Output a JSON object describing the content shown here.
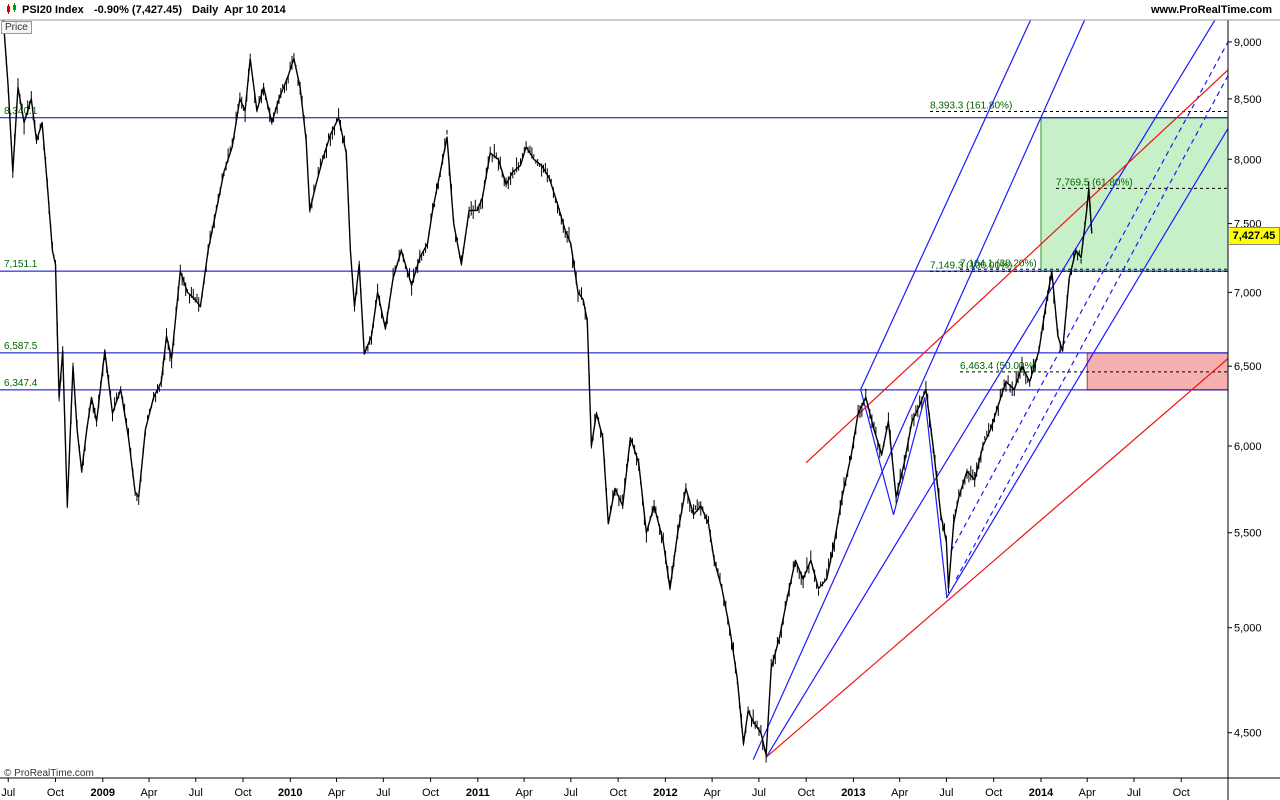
{
  "header": {
    "symbol": "PSI20 Index",
    "change": "-0.90% (7,427.45)",
    "period": "Daily",
    "date": "Apr 10 2014",
    "site": "www.ProRealTime.com"
  },
  "price_label": "Price",
  "copyright": "© ProRealTime.com",
  "colors": {
    "price": "#000000",
    "level_line": "#0000cc",
    "level_label": "#006600",
    "channel_blue": "#1a1aff",
    "channel_red": "#ee1111",
    "target_zone": "#c8f0c8",
    "target_border": "#2a9a2a",
    "support_zone": "#f6b0b0",
    "support_border": "#cc3333",
    "current_price_bg": "#ffff00"
  },
  "chart_data": {
    "type": "line",
    "title": "",
    "xlabel": "",
    "ylabel": "",
    "scale": "log",
    "ylim": [
      4300,
      9200
    ],
    "xlim": [
      "2008-06-15",
      "2014-12-31"
    ],
    "grid": false,
    "y_ticks": [
      4500,
      5000,
      5500,
      6000,
      6500,
      7000,
      7500,
      8000,
      8500,
      9000
    ],
    "y_tick_labels": [
      "4,500",
      "5,000",
      "5,500",
      "6,000",
      "6,500",
      "7,000",
      "7,500",
      "8,000",
      "8,500",
      "9,000"
    ],
    "x_ticks": [
      {
        "label": "Jul",
        "date": "2008-07-01",
        "bold": false
      },
      {
        "label": "Oct",
        "date": "2008-10-01",
        "bold": false
      },
      {
        "label": "2009",
        "date": "2009-01-01",
        "bold": true
      },
      {
        "label": "Apr",
        "date": "2009-04-01",
        "bold": false
      },
      {
        "label": "Jul",
        "date": "2009-07-01",
        "bold": false
      },
      {
        "label": "Oct",
        "date": "2009-10-01",
        "bold": false
      },
      {
        "label": "2010",
        "date": "2010-01-01",
        "bold": true
      },
      {
        "label": "Apr",
        "date": "2010-04-01",
        "bold": false
      },
      {
        "label": "Jul",
        "date": "2010-07-01",
        "bold": false
      },
      {
        "label": "Oct",
        "date": "2010-10-01",
        "bold": false
      },
      {
        "label": "2011",
        "date": "2011-01-01",
        "bold": true
      },
      {
        "label": "Apr",
        "date": "2011-04-01",
        "bold": false
      },
      {
        "label": "Jul",
        "date": "2011-07-01",
        "bold": false
      },
      {
        "label": "Oct",
        "date": "2011-10-01",
        "bold": false
      },
      {
        "label": "2012",
        "date": "2012-01-01",
        "bold": true
      },
      {
        "label": "Apr",
        "date": "2012-04-01",
        "bold": false
      },
      {
        "label": "Jul",
        "date": "2012-07-01",
        "bold": false
      },
      {
        "label": "Oct",
        "date": "2012-10-01",
        "bold": false
      },
      {
        "label": "2013",
        "date": "2013-01-01",
        "bold": true
      },
      {
        "label": "Apr",
        "date": "2013-04-01",
        "bold": false
      },
      {
        "label": "Jul",
        "date": "2013-07-01",
        "bold": false
      },
      {
        "label": "Oct",
        "date": "2013-10-01",
        "bold": false
      },
      {
        "label": "2014",
        "date": "2014-01-01",
        "bold": true
      },
      {
        "label": "Apr",
        "date": "2014-04-01",
        "bold": false
      },
      {
        "label": "Jul",
        "date": "2014-07-01",
        "bold": false
      },
      {
        "label": "Oct",
        "date": "2014-10-01",
        "bold": false
      }
    ],
    "series": [
      {
        "values": [
          [
            "2008-06-20",
            9300
          ],
          [
            "2008-07-01",
            8600
          ],
          [
            "2008-07-10",
            7900
          ],
          [
            "2008-07-20",
            8600
          ],
          [
            "2008-08-01",
            8300
          ],
          [
            "2008-08-15",
            8500
          ],
          [
            "2008-08-25",
            8150
          ],
          [
            "2008-09-05",
            8300
          ],
          [
            "2008-09-15",
            7800
          ],
          [
            "2008-09-25",
            7300
          ],
          [
            "2008-10-01",
            7200
          ],
          [
            "2008-10-08",
            6300
          ],
          [
            "2008-10-15",
            6600
          ],
          [
            "2008-10-24",
            5650
          ],
          [
            "2008-11-04",
            6500
          ],
          [
            "2008-11-12",
            6100
          ],
          [
            "2008-11-21",
            5850
          ],
          [
            "2008-12-01",
            6100
          ],
          [
            "2008-12-10",
            6300
          ],
          [
            "2008-12-20",
            6150
          ],
          [
            "2009-01-05",
            6600
          ],
          [
            "2009-01-20",
            6200
          ],
          [
            "2009-02-05",
            6350
          ],
          [
            "2009-02-20",
            6050
          ],
          [
            "2009-03-05",
            5730
          ],
          [
            "2009-03-12",
            5700
          ],
          [
            "2009-03-25",
            6100
          ],
          [
            "2009-04-10",
            6300
          ],
          [
            "2009-04-25",
            6400
          ],
          [
            "2009-05-05",
            6700
          ],
          [
            "2009-05-15",
            6550
          ],
          [
            "2009-06-01",
            7150
          ],
          [
            "2009-06-15",
            7000
          ],
          [
            "2009-06-30",
            6950
          ],
          [
            "2009-07-10",
            6900
          ],
          [
            "2009-07-25",
            7300
          ],
          [
            "2009-08-10",
            7600
          ],
          [
            "2009-08-25",
            7900
          ],
          [
            "2009-09-10",
            8100
          ],
          [
            "2009-09-25",
            8500
          ],
          [
            "2009-10-05",
            8400
          ],
          [
            "2009-10-15",
            8850
          ],
          [
            "2009-10-28",
            8400
          ],
          [
            "2009-11-10",
            8600
          ],
          [
            "2009-11-26",
            8300
          ],
          [
            "2009-12-10",
            8500
          ],
          [
            "2009-12-28",
            8700
          ],
          [
            "2010-01-08",
            8850
          ],
          [
            "2010-01-20",
            8600
          ],
          [
            "2010-02-01",
            8150
          ],
          [
            "2010-02-08",
            7600
          ],
          [
            "2010-02-20",
            7800
          ],
          [
            "2010-03-05",
            8000
          ],
          [
            "2010-03-20",
            8200
          ],
          [
            "2010-04-05",
            8340
          ],
          [
            "2010-04-20",
            8050
          ],
          [
            "2010-04-28",
            7300
          ],
          [
            "2010-05-06",
            6900
          ],
          [
            "2010-05-15",
            7200
          ],
          [
            "2010-05-25",
            6580
          ],
          [
            "2010-06-08",
            6700
          ],
          [
            "2010-06-20",
            7000
          ],
          [
            "2010-07-05",
            6750
          ],
          [
            "2010-07-20",
            7100
          ],
          [
            "2010-08-05",
            7300
          ],
          [
            "2010-08-25",
            7050
          ],
          [
            "2010-09-10",
            7250
          ],
          [
            "2010-09-25",
            7350
          ],
          [
            "2010-10-05",
            7600
          ],
          [
            "2010-10-20",
            7900
          ],
          [
            "2010-11-02",
            8180
          ],
          [
            "2010-11-15",
            7500
          ],
          [
            "2010-11-30",
            7200
          ],
          [
            "2010-12-15",
            7600
          ],
          [
            "2010-12-31",
            7600
          ],
          [
            "2011-01-10",
            7700
          ],
          [
            "2011-01-25",
            8050
          ],
          [
            "2011-02-10",
            8000
          ],
          [
            "2011-02-25",
            7800
          ],
          [
            "2011-03-10",
            7900
          ],
          [
            "2011-03-25",
            7950
          ],
          [
            "2011-04-05",
            8100
          ],
          [
            "2011-04-20",
            8000
          ],
          [
            "2011-05-05",
            7950
          ],
          [
            "2011-05-20",
            7850
          ],
          [
            "2011-06-05",
            7650
          ],
          [
            "2011-06-20",
            7450
          ],
          [
            "2011-07-01",
            7350
          ],
          [
            "2011-07-15",
            7000
          ],
          [
            "2011-07-25",
            6950
          ],
          [
            "2011-08-02",
            6800
          ],
          [
            "2011-08-10",
            6000
          ],
          [
            "2011-08-20",
            6200
          ],
          [
            "2011-09-01",
            6050
          ],
          [
            "2011-09-12",
            5550
          ],
          [
            "2011-09-25",
            5750
          ],
          [
            "2011-10-10",
            5650
          ],
          [
            "2011-10-25",
            6050
          ],
          [
            "2011-11-10",
            5900
          ],
          [
            "2011-11-25",
            5500
          ],
          [
            "2011-12-10",
            5650
          ],
          [
            "2011-12-28",
            5450
          ],
          [
            "2012-01-10",
            5200
          ],
          [
            "2012-01-25",
            5500
          ],
          [
            "2012-02-10",
            5750
          ],
          [
            "2012-02-25",
            5600
          ],
          [
            "2012-03-10",
            5650
          ],
          [
            "2012-03-25",
            5550
          ],
          [
            "2012-04-05",
            5350
          ],
          [
            "2012-04-20",
            5200
          ],
          [
            "2012-05-05",
            5000
          ],
          [
            "2012-05-20",
            4750
          ],
          [
            "2012-06-01",
            4450
          ],
          [
            "2012-06-10",
            4600
          ],
          [
            "2012-06-20",
            4550
          ],
          [
            "2012-07-05",
            4500
          ],
          [
            "2012-07-15",
            4400
          ],
          [
            "2012-07-25",
            4800
          ],
          [
            "2012-08-10",
            4950
          ],
          [
            "2012-08-25",
            5150
          ],
          [
            "2012-09-10",
            5350
          ],
          [
            "2012-09-25",
            5250
          ],
          [
            "2012-10-10",
            5350
          ],
          [
            "2012-10-25",
            5200
          ],
          [
            "2012-11-10",
            5250
          ],
          [
            "2012-11-25",
            5450
          ],
          [
            "2012-12-10",
            5700
          ],
          [
            "2012-12-28",
            5950
          ],
          [
            "2013-01-10",
            6200
          ],
          [
            "2013-01-25",
            6300
          ],
          [
            "2013-02-10",
            6100
          ],
          [
            "2013-02-25",
            5950
          ],
          [
            "2013-03-10",
            6150
          ],
          [
            "2013-03-25",
            5700
          ],
          [
            "2013-04-10",
            5900
          ],
          [
            "2013-04-25",
            6150
          ],
          [
            "2013-05-10",
            6250
          ],
          [
            "2013-05-22",
            6350
          ],
          [
            "2013-06-05",
            6000
          ],
          [
            "2013-06-20",
            5600
          ],
          [
            "2013-07-01",
            5450
          ],
          [
            "2013-07-05",
            5200
          ],
          [
            "2013-07-15",
            5550
          ],
          [
            "2013-07-25",
            5700
          ],
          [
            "2013-08-10",
            5850
          ],
          [
            "2013-08-25",
            5800
          ],
          [
            "2013-09-10",
            6000
          ],
          [
            "2013-09-25",
            6100
          ],
          [
            "2013-10-10",
            6250
          ],
          [
            "2013-10-25",
            6400
          ],
          [
            "2013-11-10",
            6350
          ],
          [
            "2013-11-25",
            6500
          ],
          [
            "2013-12-10",
            6400
          ],
          [
            "2013-12-28",
            6600
          ],
          [
            "2014-01-10",
            6900
          ],
          [
            "2014-01-22",
            7150
          ],
          [
            "2014-02-03",
            6700
          ],
          [
            "2014-02-12",
            6600
          ],
          [
            "2014-02-25",
            7100
          ],
          [
            "2014-03-10",
            7300
          ],
          [
            "2014-03-20",
            7250
          ],
          [
            "2014-03-31",
            7600
          ],
          [
            "2014-04-04",
            7769
          ],
          [
            "2014-04-10",
            7427
          ]
        ]
      }
    ],
    "horizontal_levels": [
      {
        "value": 8340.1,
        "label": "8,340.1"
      },
      {
        "value": 7151.1,
        "label": "7,151.1"
      },
      {
        "value": 6587.5,
        "label": "6,587.5"
      },
      {
        "value": 6347.4,
        "label": "6,347.4"
      }
    ],
    "fib_levels": [
      {
        "value": 8393.3,
        "label": "8,393.3 (161.80%)"
      },
      {
        "value": 7769.5,
        "label": "7,769.5 (61.80%)"
      },
      {
        "value": 7164.1,
        "label": "7,164.1 (38.20%)"
      },
      {
        "value": 7149.3,
        "label": "7,149.3 (100.00%)"
      },
      {
        "value": 6463.4,
        "label": "6,463.4 (50.00%)"
      }
    ],
    "current_price": "7,427.45",
    "zones": [
      {
        "name": "target",
        "x_start": "2014-01-01",
        "x_end": "2014-12-31",
        "y_low": 7151.1,
        "y_high": 8340.1
      },
      {
        "name": "support",
        "x_start": "2014-04-01",
        "x_end": "2014-12-31",
        "y_low": 6347.4,
        "y_high": 6587.5
      }
    ],
    "trendlines": [
      {
        "kind": "blue",
        "dashed": false,
        "from": [
          "2012-06-20",
          4380
        ],
        "to": [
          "2014-04-10",
          9350
        ]
      },
      {
        "kind": "blue",
        "dashed": false,
        "from": [
          "2012-07-15",
          4390
        ],
        "to": [
          "2014-12-31",
          9400
        ]
      },
      {
        "kind": "blue",
        "dashed": false,
        "from": [
          "2013-07-01",
          5150
        ],
        "to": [
          "2014-12-31",
          8250
        ]
      },
      {
        "kind": "blue",
        "dashed": false,
        "from": [
          "2013-01-15",
          6350
        ],
        "to": [
          "2013-12-31",
          9400
        ]
      },
      {
        "kind": "blue",
        "dashed": true,
        "from": [
          "2013-07-10",
          5400
        ],
        "to": [
          "2014-12-31",
          9000
        ]
      },
      {
        "kind": "blue",
        "dashed": true,
        "from": [
          "2013-07-20",
          5250
        ],
        "to": [
          "2014-12-31",
          8700
        ]
      },
      {
        "kind": "blue",
        "dashed": false,
        "from": [
          "2013-01-15",
          6350
        ],
        "to": [
          "2013-03-20",
          5600
        ]
      },
      {
        "kind": "blue",
        "dashed": false,
        "from": [
          "2013-03-20",
          5600
        ],
        "to": [
          "2013-05-20",
          6300
        ]
      },
      {
        "kind": "blue",
        "dashed": false,
        "from": [
          "2013-05-20",
          6300
        ],
        "to": [
          "2013-07-02",
          5150
        ]
      },
      {
        "kind": "red",
        "dashed": false,
        "from": [
          "2012-10-01",
          5900
        ],
        "to": [
          "2014-12-31",
          8750
        ]
      },
      {
        "kind": "red",
        "dashed": false,
        "from": [
          "2012-07-15",
          4390
        ],
        "to": [
          "2014-12-31",
          6550
        ]
      }
    ]
  }
}
